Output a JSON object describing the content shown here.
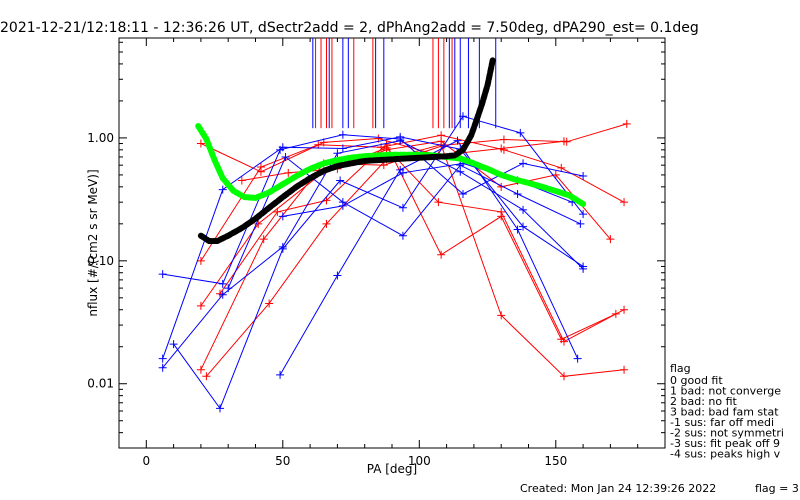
{
  "chart_data": {
    "type": "scatter",
    "title": "2021-12-21/12:18:11 - 12:36:26 UT, dSectr2add = 2, dPhAng2add = 7.50deg, dPA290_est=    0.1deg",
    "xlabel": "PA [deg]",
    "ylabel": "nflux [#/(cm2 s sr MeV)]",
    "xlim": [
      -10,
      190
    ],
    "ylim": [
      0.003,
      6.5
    ],
    "yscale": "log",
    "x_ticks": [
      0,
      50,
      100,
      150
    ],
    "y_ticks": [
      {
        "value": 0.01,
        "label": "0.01"
      },
      {
        "value": 0.1,
        "label": "0.10"
      },
      {
        "value": 1,
        "label": "1.00"
      }
    ],
    "grid": false,
    "colors": {
      "red": "#ff0000",
      "blue": "#0000ff",
      "green": "#00ff00",
      "black": "#000000"
    },
    "series": [
      {
        "color": "red",
        "points": [
          [
            20,
            0.9
          ],
          [
            42,
            0.53
          ],
          [
            65,
            0.92
          ],
          [
            85,
            0.99
          ],
          [
            107,
            0.72
          ],
          [
            130,
            0.82
          ],
          [
            153,
            0.94
          ]
        ]
      },
      {
        "color": "red",
        "points": [
          [
            20,
            0.1
          ],
          [
            42,
            0.58
          ],
          [
            63,
            0.88
          ],
          [
            86,
            0.84
          ],
          [
            108,
            1.05
          ],
          [
            131,
            0.8
          ],
          [
            152,
            0.57
          ],
          [
            175,
            0.3
          ]
        ]
      },
      {
        "color": "red",
        "points": [
          [
            20,
            0.043
          ],
          [
            41,
            0.2
          ],
          [
            65,
            0.53
          ],
          [
            88,
            0.83
          ],
          [
            107,
            0.3
          ],
          [
            130,
            0.25
          ],
          [
            153,
            0.022
          ],
          [
            175,
            0.04
          ]
        ]
      },
      {
        "color": "red",
        "points": [
          [
            20,
            0.013
          ],
          [
            43,
            0.15
          ],
          [
            65,
            0.62
          ],
          [
            87,
            0.6
          ],
          [
            109,
            0.87
          ],
          [
            131,
            0.97
          ],
          [
            154,
            0.93
          ],
          [
            176,
            1.3
          ]
        ]
      },
      {
        "color": "red",
        "points": [
          [
            22,
            0.0115
          ],
          [
            45,
            0.045
          ],
          [
            66,
            0.2
          ],
          [
            88,
            0.67
          ],
          [
            108,
            0.88
          ],
          [
            130,
            0.036
          ],
          [
            153,
            0.0115
          ],
          [
            175,
            0.013
          ]
        ]
      },
      {
        "color": "red",
        "points": [
          [
            27,
            0.054
          ],
          [
            48,
            0.25
          ],
          [
            66,
            0.31
          ],
          [
            88,
            0.89
          ],
          [
            108,
            0.112
          ],
          [
            130,
            0.23
          ],
          [
            152,
            0.023
          ],
          [
            172,
            0.037
          ]
        ]
      },
      {
        "color": "red",
        "points": [
          [
            35,
            0.45
          ],
          [
            52,
            0.52
          ],
          [
            70,
            0.56
          ],
          [
            88,
            0.8
          ],
          [
            108,
            0.94
          ],
          [
            130,
            0.4
          ],
          [
            150,
            0.5
          ],
          [
            170,
            0.15
          ]
        ]
      },
      {
        "color": "blue",
        "points": [
          [
            6,
            0.078
          ],
          [
            28,
            0.065
          ],
          [
            49,
            0.8
          ],
          [
            72,
            1.06
          ],
          [
            93,
            0.98
          ],
          [
            116,
            0.35
          ],
          [
            138,
            0.62
          ],
          [
            160,
            0.49
          ]
        ]
      },
      {
        "color": "blue",
        "points": [
          [
            6,
            0.016
          ],
          [
            28,
            0.38
          ],
          [
            50,
            0.84
          ],
          [
            72,
            0.82
          ],
          [
            93,
            1.02
          ],
          [
            115,
            0.81
          ],
          [
            138,
            0.19
          ],
          [
            160,
            0.09
          ]
        ]
      },
      {
        "color": "blue",
        "points": [
          [
            6,
            0.0135
          ],
          [
            28,
            0.053
          ],
          [
            50,
            0.13
          ],
          [
            70,
            0.75
          ],
          [
            93,
            0.95
          ],
          [
            115,
            0.53
          ],
          [
            138,
            0.26
          ],
          [
            160,
            0.086
          ]
        ]
      },
      {
        "color": "blue",
        "points": [
          [
            10,
            0.021
          ],
          [
            27,
            0.0063
          ],
          [
            50,
            0.125
          ],
          [
            71,
            0.45
          ],
          [
            94,
            0.27
          ],
          [
            116,
            1.5
          ],
          [
            137,
            1.1
          ],
          [
            160,
            0.24
          ]
        ]
      },
      {
        "color": "blue",
        "points": [
          [
            49,
            0.0118
          ],
          [
            70,
            0.076
          ],
          [
            93,
            0.55
          ],
          [
            114,
            0.95
          ],
          [
            136,
            0.18
          ],
          [
            158,
            0.016
          ]
        ]
      },
      {
        "color": "blue",
        "points": [
          [
            30,
            0.06
          ],
          [
            51,
            0.7
          ],
          [
            72,
            0.3
          ],
          [
            94,
            0.16
          ],
          [
            115,
            0.6
          ],
          [
            136,
            0.35
          ],
          [
            159,
            0.2
          ]
        ]
      },
      {
        "color": "blue",
        "points": [
          [
            50,
            0.23
          ],
          [
            72,
            0.28
          ],
          [
            94,
            0.52
          ],
          [
            116,
            0.62
          ],
          [
            136,
            0.45
          ],
          [
            156,
            0.3
          ]
        ]
      }
    ],
    "fit_curves": [
      {
        "color": "green",
        "points": [
          [
            19,
            1.25
          ],
          [
            22,
            0.98
          ],
          [
            25,
            0.66
          ],
          [
            28,
            0.47
          ],
          [
            32,
            0.37
          ],
          [
            36,
            0.33
          ],
          [
            40,
            0.325
          ],
          [
            45,
            0.36
          ],
          [
            50,
            0.42
          ],
          [
            55,
            0.49
          ],
          [
            60,
            0.56
          ],
          [
            65,
            0.62
          ],
          [
            70,
            0.66
          ],
          [
            75,
            0.69
          ],
          [
            80,
            0.71
          ],
          [
            85,
            0.72
          ],
          [
            90,
            0.73
          ],
          [
            95,
            0.73
          ],
          [
            100,
            0.73
          ],
          [
            105,
            0.72
          ],
          [
            110,
            0.7
          ],
          [
            115,
            0.68
          ],
          [
            120,
            0.62
          ],
          [
            125,
            0.56
          ],
          [
            130,
            0.5
          ],
          [
            135,
            0.46
          ],
          [
            140,
            0.43
          ],
          [
            145,
            0.4
          ],
          [
            150,
            0.37
          ],
          [
            155,
            0.34
          ],
          [
            160,
            0.29
          ]
        ]
      },
      {
        "color": "black",
        "points": [
          [
            20,
            0.16
          ],
          [
            23,
            0.145
          ],
          [
            26,
            0.145
          ],
          [
            30,
            0.16
          ],
          [
            35,
            0.185
          ],
          [
            40,
            0.22
          ],
          [
            45,
            0.27
          ],
          [
            50,
            0.33
          ],
          [
            55,
            0.4
          ],
          [
            60,
            0.47
          ],
          [
            65,
            0.54
          ],
          [
            70,
            0.59
          ],
          [
            75,
            0.62
          ],
          [
            80,
            0.65
          ],
          [
            85,
            0.66
          ],
          [
            90,
            0.67
          ],
          [
            95,
            0.68
          ],
          [
            100,
            0.69
          ],
          [
            105,
            0.7
          ],
          [
            110,
            0.71
          ],
          [
            113,
            0.72
          ],
          [
            116,
            0.8
          ],
          [
            119,
            1.05
          ],
          [
            121,
            1.4
          ],
          [
            123,
            1.9
          ],
          [
            125,
            2.7
          ],
          [
            127,
            4.4
          ]
        ]
      }
    ],
    "vertical_markers": [
      {
        "color": "blue",
        "x": [
          61,
          67,
          72,
          74,
          84,
          87,
          111,
          113,
          115,
          118,
          122,
          128
        ]
      },
      {
        "color": "red",
        "x": [
          62,
          64,
          66,
          68,
          76,
          83,
          105,
          107,
          109,
          112
        ]
      }
    ],
    "legend": {
      "title": "flag",
      "entries": [
        " 0 good fit",
        " 1 bad: not converge",
        " 2 bad: no fit",
        " 3 bad: bad fam stat",
        "-1 sus: far off medi",
        "-2 sus: not symmetri",
        "-3 sus: fit peak off 9",
        "-4 sus: peaks high v"
      ]
    },
    "footer": {
      "created": "Created: Mon Jan 24 12:39:26 2022",
      "flag": "flag = 3"
    }
  }
}
